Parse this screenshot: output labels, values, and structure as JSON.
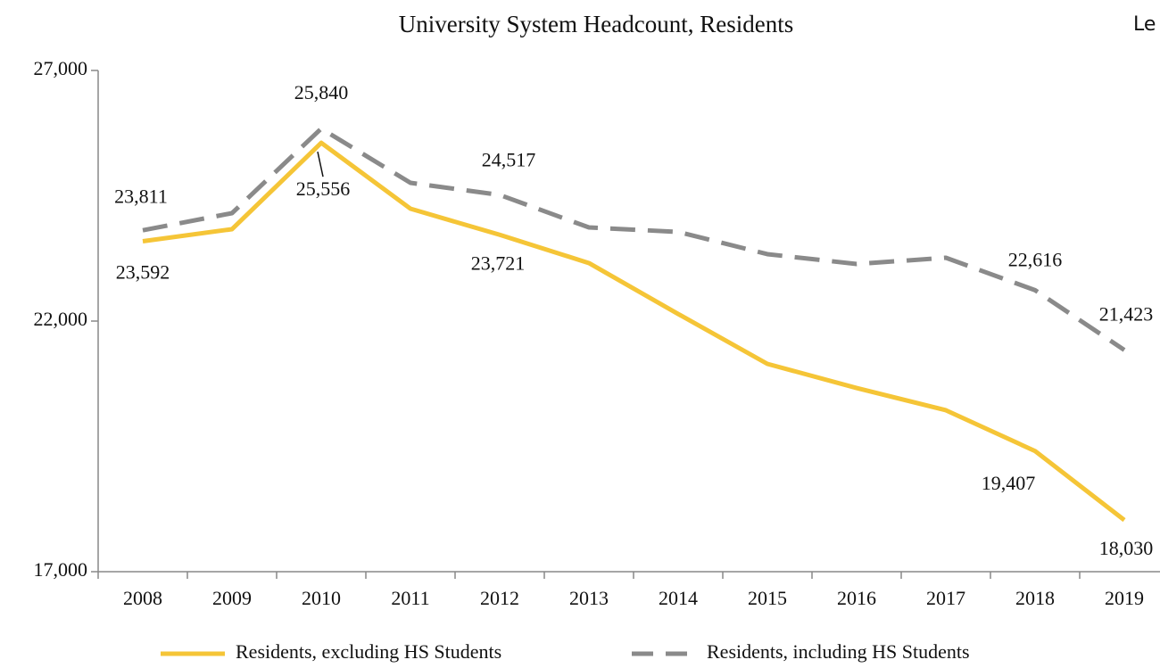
{
  "chart_data": {
    "type": "line",
    "title": "University System Headcount, Residents",
    "annotation": "Le",
    "categories": [
      "2008",
      "2009",
      "2010",
      "2011",
      "2012",
      "2013",
      "2014",
      "2015",
      "2016",
      "2017",
      "2018",
      "2019"
    ],
    "series": [
      {
        "name": "Residents, excluding HS Students",
        "color": "#f5c537",
        "dash": false,
        "values": [
          23592,
          23833,
          25556,
          24242,
          23721,
          23157,
          22142,
          21146,
          20665,
          20221,
          19407,
          18030
        ],
        "value_labels": [
          "23,592",
          null,
          "25,556",
          null,
          "23,721",
          null,
          null,
          null,
          null,
          null,
          "19,407",
          "18,030"
        ]
      },
      {
        "name": "Residents, including HS Students",
        "color": "#8a8a8a",
        "dash": true,
        "values": [
          23811,
          24153,
          25840,
          24758,
          24517,
          23868,
          23779,
          23335,
          23139,
          23263,
          22616,
          21423
        ],
        "value_labels": [
          "23,811",
          null,
          "25,840",
          null,
          "24,517",
          null,
          null,
          null,
          null,
          null,
          "22,616",
          "21,423"
        ]
      }
    ],
    "ylim": [
      17000,
      27000
    ],
    "yticks": [
      {
        "value": 17000,
        "label": "17,000"
      },
      {
        "value": 22000,
        "label": "22,000"
      },
      {
        "value": 27000,
        "label": "27,000"
      }
    ],
    "grid": false
  }
}
